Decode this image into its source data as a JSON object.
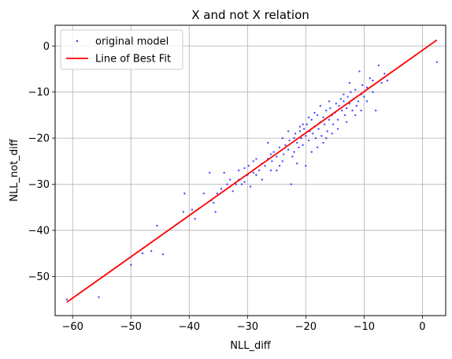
{
  "chart_data": {
    "type": "scatter",
    "title": "X and not X relation",
    "xlabel": "NLL_diff",
    "ylabel": "NLL_not_diff",
    "xlim": [
      -63,
      4
    ],
    "ylim": [
      -58.5,
      4.5
    ],
    "xticks": [
      -60,
      -50,
      -40,
      -30,
      -20,
      -10,
      0
    ],
    "yticks": [
      -50,
      -40,
      -30,
      -20,
      -10,
      0
    ],
    "xtick_labels": [
      "−60",
      "−50",
      "−40",
      "−30",
      "−20",
      "−10",
      "0"
    ],
    "ytick_labels": [
      "−50",
      "−40",
      "−30",
      "−20",
      "−10",
      "0"
    ],
    "grid": true,
    "legend_position": "top-left",
    "legend": [
      {
        "label": "original model",
        "kind": "scatter",
        "color": "#0000ff"
      },
      {
        "label": "Line of Best Fit",
        "kind": "line",
        "color": "#ff0000"
      }
    ],
    "series": [
      {
        "name": "original model",
        "kind": "scatter",
        "color": "#0000ff",
        "points": [
          [
            -61,
            -55
          ],
          [
            -55.5,
            -54.5
          ],
          [
            -50,
            -47.5
          ],
          [
            -48,
            -45
          ],
          [
            -46.5,
            -44.5
          ],
          [
            -45.5,
            -39
          ],
          [
            -44.5,
            -45.2
          ],
          [
            -41,
            -36
          ],
          [
            -40.8,
            -32
          ],
          [
            -39.5,
            -35.5
          ],
          [
            -39,
            -37.5
          ],
          [
            -37.5,
            -32
          ],
          [
            -36.5,
            -27.5
          ],
          [
            -36.2,
            -33.5
          ],
          [
            -35.8,
            -34
          ],
          [
            -35.5,
            -36
          ],
          [
            -35.2,
            -32
          ],
          [
            -34.5,
            -31
          ],
          [
            -34,
            -27.5
          ],
          [
            -33.5,
            -30
          ],
          [
            -33,
            -30.5
          ],
          [
            -32.5,
            -31.5
          ],
          [
            -32,
            -30
          ],
          [
            -31.5,
            -29
          ],
          [
            -31,
            -30
          ],
          [
            -30.5,
            -29.5
          ],
          [
            -30,
            -28
          ],
          [
            -29.8,
            -26
          ],
          [
            -29.5,
            -30.5
          ],
          [
            -29,
            -27.5
          ],
          [
            -28.5,
            -28
          ],
          [
            -28,
            -27
          ],
          [
            -27.5,
            -25.5
          ],
          [
            -27,
            -26
          ],
          [
            -26.5,
            -24.5
          ],
          [
            -26,
            -27
          ],
          [
            -25.8,
            -25
          ],
          [
            -25.5,
            -23
          ],
          [
            -25,
            -24
          ],
          [
            -24.5,
            -22
          ],
          [
            -24,
            -25
          ],
          [
            -23.8,
            -23.5
          ],
          [
            -23.5,
            -21.5
          ],
          [
            -23,
            -22.5
          ],
          [
            -22.8,
            -20.5
          ],
          [
            -22.5,
            -30
          ],
          [
            -22.3,
            -24
          ],
          [
            -22,
            -20
          ],
          [
            -21.8,
            -19
          ],
          [
            -21.5,
            -21
          ],
          [
            -21.2,
            -22
          ],
          [
            -21,
            -18.5
          ],
          [
            -20.8,
            -20
          ],
          [
            -20.5,
            -21.5
          ],
          [
            -20.3,
            -18
          ],
          [
            -20,
            -19.5
          ],
          [
            -19.8,
            -17
          ],
          [
            -19.5,
            -20.5
          ],
          [
            -19.3,
            -18.5
          ],
          [
            -19,
            -16
          ],
          [
            -18.8,
            -19
          ],
          [
            -18.5,
            -17.5
          ],
          [
            -18.3,
            -20
          ],
          [
            -18,
            -15
          ],
          [
            -17.8,
            -18
          ],
          [
            -17.5,
            -16.5
          ],
          [
            -17.3,
            -19.5
          ],
          [
            -17,
            -15.5
          ],
          [
            -16.8,
            -17
          ],
          [
            -16.5,
            -14
          ],
          [
            -16.3,
            -18.5
          ],
          [
            -16,
            -16
          ],
          [
            -15.8,
            -13.5
          ],
          [
            -15.5,
            -15
          ],
          [
            -15.3,
            -17
          ],
          [
            -15,
            -14.5
          ],
          [
            -14.8,
            -12.5
          ],
          [
            -14.5,
            -16
          ],
          [
            -14.3,
            -13
          ],
          [
            -14,
            -11.5
          ],
          [
            -13.8,
            -14
          ],
          [
            -13.5,
            -12
          ],
          [
            -13.3,
            -15
          ],
          [
            -13,
            -13.5
          ],
          [
            -12.8,
            -11
          ],
          [
            -12.5,
            -12.5
          ],
          [
            -12.3,
            -10
          ],
          [
            -12,
            -14
          ],
          [
            -11.8,
            -11.5
          ],
          [
            -11.5,
            -9.5
          ],
          [
            -11.3,
            -13
          ],
          [
            -11,
            -12
          ],
          [
            -10.8,
            -5.5
          ],
          [
            -10.5,
            -10.5
          ],
          [
            -10.3,
            -8.5
          ],
          [
            -10,
            -11
          ],
          [
            -9.5,
            -9
          ],
          [
            -9,
            -7
          ],
          [
            -8.5,
            -10
          ],
          [
            -8,
            -14
          ],
          [
            -7.5,
            -4.2
          ],
          [
            -7,
            -8
          ],
          [
            -6.5,
            -6
          ],
          [
            -6,
            -7.5
          ],
          [
            2.5,
            -3.5
          ],
          [
            -20,
            -26
          ],
          [
            -21.5,
            -25.5
          ],
          [
            -24,
            -20
          ],
          [
            -19,
            -23
          ],
          [
            -17,
            -21
          ],
          [
            -15.5,
            -19
          ],
          [
            -13,
            -16.5
          ],
          [
            -11.5,
            -15
          ],
          [
            -12.5,
            -8
          ],
          [
            -16,
            -12
          ],
          [
            -18,
            -22
          ],
          [
            -23,
            -18.5
          ],
          [
            -26.5,
            -21
          ],
          [
            -28.5,
            -24.5
          ],
          [
            -30.5,
            -26.5
          ],
          [
            -27.5,
            -29
          ],
          [
            -25,
            -27
          ],
          [
            -22,
            -23
          ],
          [
            -20.5,
            -17
          ],
          [
            -18.5,
            -14.5
          ],
          [
            -16.5,
            -20
          ],
          [
            -14.5,
            -18
          ],
          [
            -13.5,
            -10.5
          ],
          [
            -10.5,
            -14
          ],
          [
            -9.5,
            -12
          ],
          [
            -8.5,
            -7.5
          ],
          [
            -19.5,
            -15.5
          ],
          [
            -17.5,
            -13
          ],
          [
            -21,
            -17.5
          ],
          [
            -24.5,
            -26
          ],
          [
            -26,
            -23.5
          ],
          [
            -29,
            -25
          ],
          [
            -31.5,
            -27
          ],
          [
            -33,
            -29
          ]
        ]
      },
      {
        "name": "Line of Best Fit",
        "kind": "line",
        "color": "#ff0000",
        "points": [
          [
            -61,
            -55.6
          ],
          [
            2.5,
            1.3
          ]
        ]
      }
    ]
  }
}
